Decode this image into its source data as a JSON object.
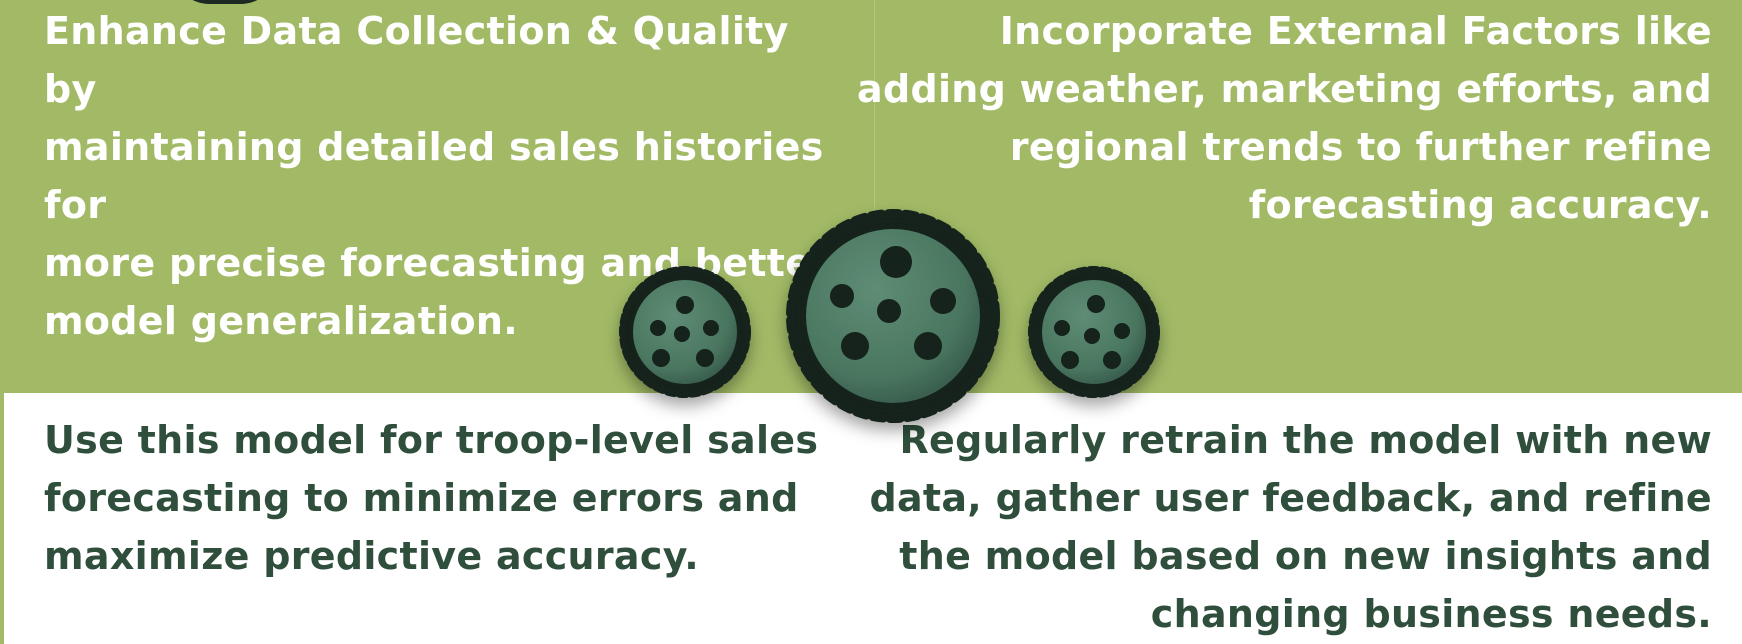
{
  "recommendations": {
    "top_left": "Enhance Data Collection & Quality by\nmaintaining detailed sales histories for\nmore precise forecasting and better\nmodel generalization.",
    "top_right": "Incorporate External Factors like\nadding weather, marketing efforts, and\nregional trends to further refine\nforecasting accuracy.",
    "bottom_left": "Use this model for troop-level sales\nforecasting to minimize errors and\nmaximize predictive accuracy.",
    "bottom_right": "Regularly retrain the model with new\ndata, gather user feedback, and refine\nthe model based on new insights and\nchanging business needs."
  },
  "colors": {
    "band": "#a2ba66",
    "dark_text": "#2f4f3c",
    "light_text": "#ffffff",
    "cookie_fill": "#4d7a64",
    "cookie_edge": "#13201a"
  },
  "icons": [
    "cookie-icon",
    "cookie-icon",
    "cookie-icon"
  ]
}
